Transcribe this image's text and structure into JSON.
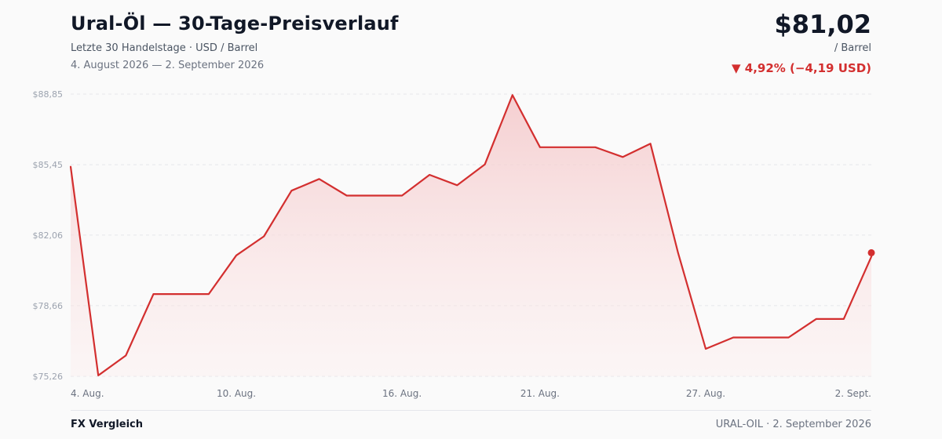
{
  "header": {
    "title": "Ural-Öl — 30-Tage-Preisverlauf",
    "subtitle": "Letzte 30 Handelstage · USD / Barrel",
    "date_range": "4. August 2026 — 2. September 2026",
    "price": "$81,02",
    "unit": "/ Barrel",
    "change": "▼ 4,92% (−4,19 USD)"
  },
  "footer": {
    "left": "FX Vergleich",
    "right": "URAL-OIL · 2. September 2026"
  },
  "colors": {
    "line": "#d32f2f",
    "fill": "#f8d7d8",
    "grid": "#e5e7eb"
  },
  "chart_data": {
    "type": "area",
    "ylim": [
      75.26,
      88.85
    ],
    "yticks": [
      "$88,85",
      "$85,45",
      "$82,06",
      "$78,66",
      "$75,26"
    ],
    "ytick_values": [
      88.85,
      85.45,
      82.06,
      78.66,
      75.26
    ],
    "xtick_labels": [
      {
        "index": 0,
        "label": "4. Aug."
      },
      {
        "index": 6,
        "label": "10. Aug."
      },
      {
        "index": 12,
        "label": "16. Aug."
      },
      {
        "index": 17,
        "label": "21. Aug."
      },
      {
        "index": 23,
        "label": "27. Aug."
      },
      {
        "index": 29,
        "label": "2. Sept."
      }
    ],
    "grid": true,
    "series": [
      {
        "values": [
          85.35,
          75.3,
          76.26,
          79.22,
          79.22,
          79.22,
          81.08,
          82.0,
          84.2,
          84.76,
          83.96,
          83.96,
          83.96,
          84.96,
          84.46,
          85.46,
          88.8,
          86.29,
          86.29,
          86.29,
          85.82,
          86.46,
          81.2,
          76.58,
          77.13,
          77.13,
          77.13,
          78.02,
          78.02,
          81.02
        ]
      }
    ]
  }
}
